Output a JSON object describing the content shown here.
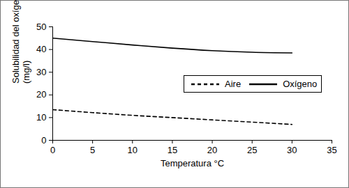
{
  "chart_data": {
    "type": "line",
    "x_label": "Temperatura °C",
    "y_label": "Solubilidad del oxígeno\n(mg/l)",
    "x": [
      0,
      5,
      10,
      15,
      20,
      25,
      30
    ],
    "series": [
      {
        "name": "Aire",
        "color": "#000000",
        "line_style": "dashed",
        "values": [
          13.5,
          12.2,
          11,
          10,
          9,
          8,
          7
        ]
      },
      {
        "name": "Oxígeno",
        "color": "#000000",
        "line_style": "solid",
        "values": [
          45,
          43.5,
          42,
          40.6,
          39.5,
          38.8,
          38.5
        ]
      }
    ],
    "xlim": [
      0,
      35
    ],
    "xticks": [
      0,
      5,
      10,
      15,
      20,
      25,
      30,
      35
    ],
    "ylim": [
      0,
      50
    ],
    "yticks": [
      0,
      10,
      20,
      30,
      40,
      50
    ],
    "grid": false,
    "legend": "right"
  }
}
